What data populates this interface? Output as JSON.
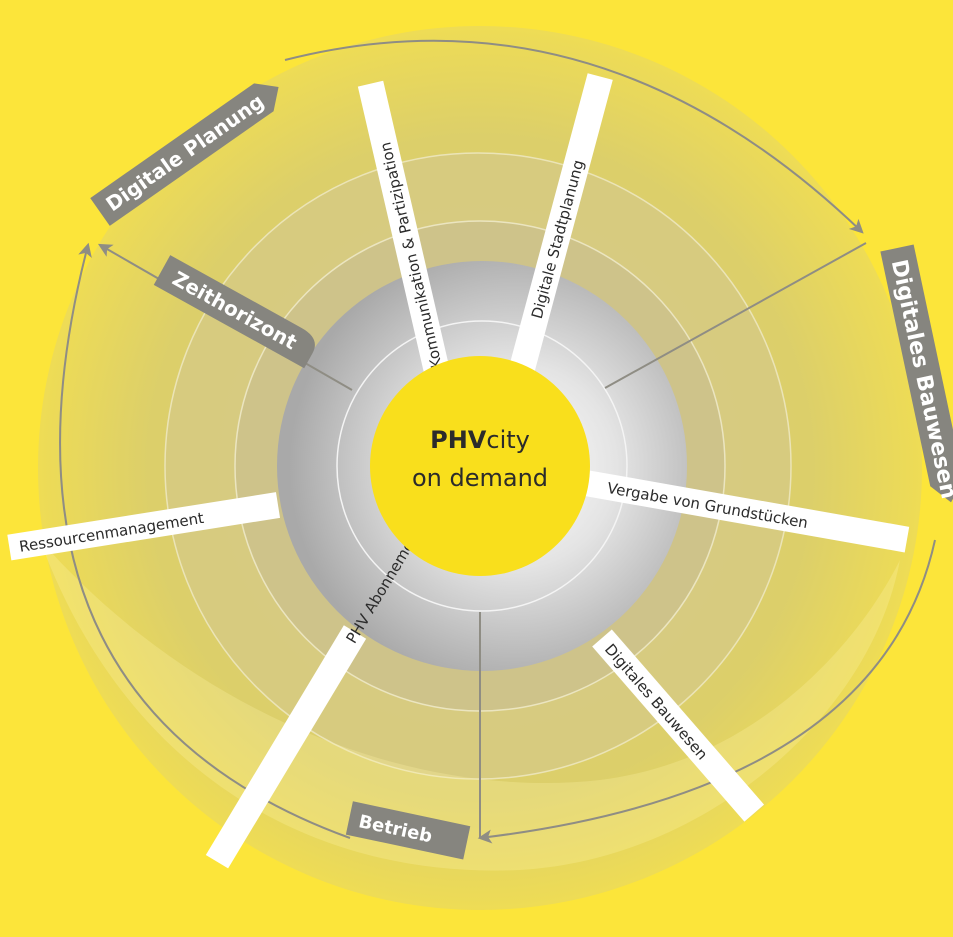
{
  "center": {
    "line1_bold": "PHV",
    "line1_rest": "city",
    "line2": "on demand"
  },
  "phases": {
    "planung": "Digitale Planung",
    "bauwesen": "Digitales Bauwesen",
    "betrieb": "Betrieb"
  },
  "axis_label": "Zeithorizont",
  "spokes": {
    "kommunikation": "Kommunikation & Partizipation",
    "stadtplanung": "Digitale Stadtplanung",
    "vergabe": "Vergabe von Grundstücken",
    "bauwesen": "Digitales Bauwesen",
    "abonnement": "PHV Abonnement & Sharing",
    "ressourcen": "Ressourcenmanagement"
  },
  "colors": {
    "background": "#fce53a",
    "center": "#f9df1c",
    "label_tab": "#86857f",
    "arrow": "#8f8d84",
    "spoke_bar": "#ffffff",
    "text": "#2b2b2b"
  },
  "icons": {
    "arrowhead": "arrowhead-icon"
  }
}
